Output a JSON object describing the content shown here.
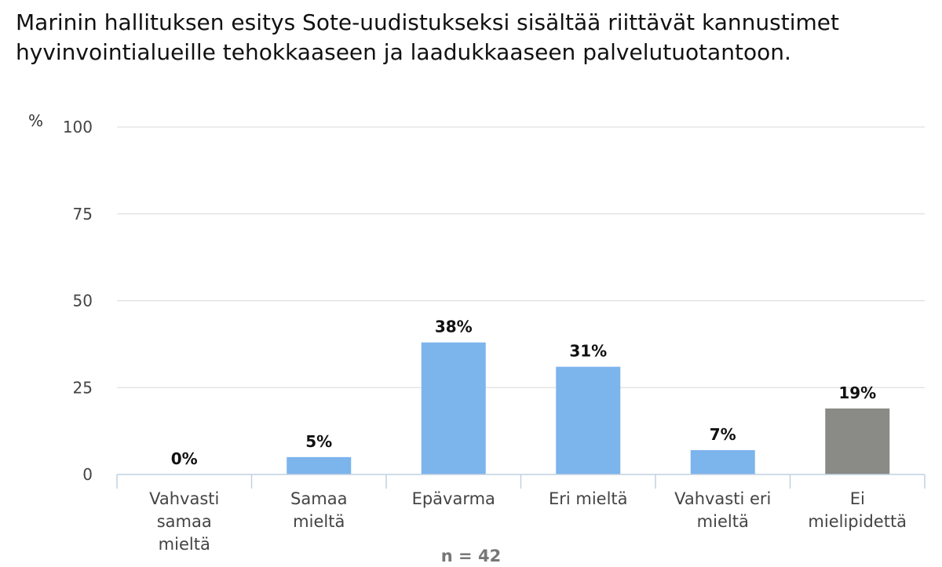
{
  "chart_data": {
    "type": "bar",
    "title": "Marinin hallituksen esitys Sote-uudistukseksi sisältää riittävät kannustimet hyvinvointialueille tehokkaaseen ja laadukkaaseen palvelutuotantoon.",
    "ylabel": "%",
    "ylim": [
      0,
      100
    ],
    "yticks": [
      0,
      25,
      50,
      75,
      100
    ],
    "categories": [
      [
        "Vahvasti",
        "samaa",
        "mieltä"
      ],
      [
        "Samaa",
        "mieltä"
      ],
      [
        "Epävarma"
      ],
      [
        "Eri mieltä"
      ],
      [
        "Vahvasti eri",
        "mieltä"
      ],
      [
        "Ei",
        "mielipidettä"
      ]
    ],
    "values": [
      0,
      5,
      38,
      31,
      7,
      19
    ],
    "data_labels": [
      "0%",
      "5%",
      "38%",
      "31%",
      "7%",
      "19%"
    ],
    "bar_colors": [
      "#7cb4ec",
      "#7cb4ec",
      "#7cb4ec",
      "#7cb4ec",
      "#7cb4ec",
      "#8a8a86"
    ],
    "grid": true,
    "footnote": "n = 42"
  }
}
